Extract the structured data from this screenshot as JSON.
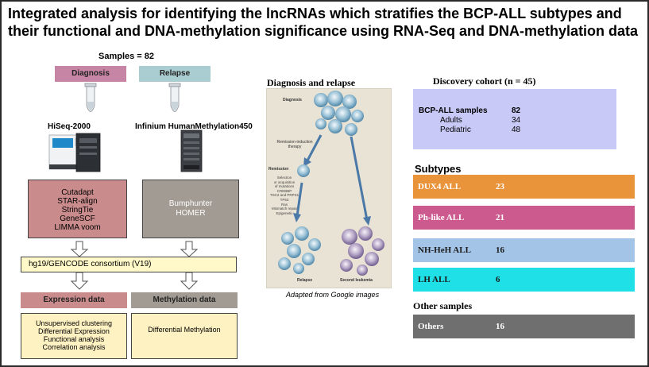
{
  "title": "Integrated analysis for identifying the lncRNAs which stratifies the BCP-ALL subtypes and their functional and DNA-methylation significance using RNA-Seq and DNA-methylation data",
  "left": {
    "samples": "Samples = 82",
    "diagnosis": "Diagnosis",
    "relapse": "Relapse",
    "platform_rna": "HiSeq-2000",
    "platform_meth": "Infinium HumanMethylation450",
    "rna_tools": [
      "Cutadapt",
      "STAR-align",
      "StringTie",
      "GeneSCF",
      "LIMMA voom"
    ],
    "meth_tools": [
      "Bumphunter",
      "HOMER"
    ],
    "reference": "hg19/GENCODE consortium (V19)",
    "expression_title": "Expression data",
    "methylation_title": "Methylation data",
    "expression_steps": [
      "Unsupervised clustering",
      "Differential Expression",
      "Functional analysis",
      "Correlation analysis"
    ],
    "methylation_steps": [
      "Differential Methylation"
    ]
  },
  "middle": {
    "heading": "Diagnosis and relapse",
    "caption": "Adapted from Google images",
    "illus_diagnosis": "Diagnosis",
    "illus_remission_induction": "Remission-induction therapy",
    "illus_remission": "Remission",
    "illus_selection": [
      "Selection",
      "or acquisition",
      "of mutations",
      "CREBBP",
      "TSC2 and PRPS1",
      "TP53",
      "Ras",
      "Mismatch repair",
      "Epigenetic"
    ],
    "illus_relapse": "Relapse",
    "illus_second": "Second leukemia"
  },
  "right": {
    "cohort_title": "Discovery cohort (n = 45)",
    "cohort_rows": [
      {
        "label": "BCP-ALL samples",
        "value": "82"
      },
      {
        "label": "Adults",
        "value": "34"
      },
      {
        "label": "Pediatric",
        "value": "48"
      }
    ],
    "subtypes_title": "Subtypes",
    "subtypes": [
      {
        "name": "DUX4 ALL",
        "count": "23",
        "color": "#e9933a"
      },
      {
        "name": "Ph-like ALL",
        "count": "21",
        "color": "#cc5a8f"
      },
      {
        "name": "NH-HeH ALL",
        "count": "16",
        "color": "#a3c4e6"
      },
      {
        "name": "LH  ALL",
        "count": "6",
        "color": "#1ee0e6"
      }
    ],
    "other_title": "Other samples",
    "others": {
      "name": "Others",
      "count": "16",
      "color": "#6f6f6f"
    }
  },
  "colors": {
    "diagnosis_pill": "#c785a6",
    "relapse_pill": "#a9cdd0",
    "rna_box": "#c98b8c",
    "meth_box": "#a29b93",
    "reference_box": "#fff8c8",
    "result_box": "#fff2c2",
    "cohort_box": "#c8c9f6"
  }
}
